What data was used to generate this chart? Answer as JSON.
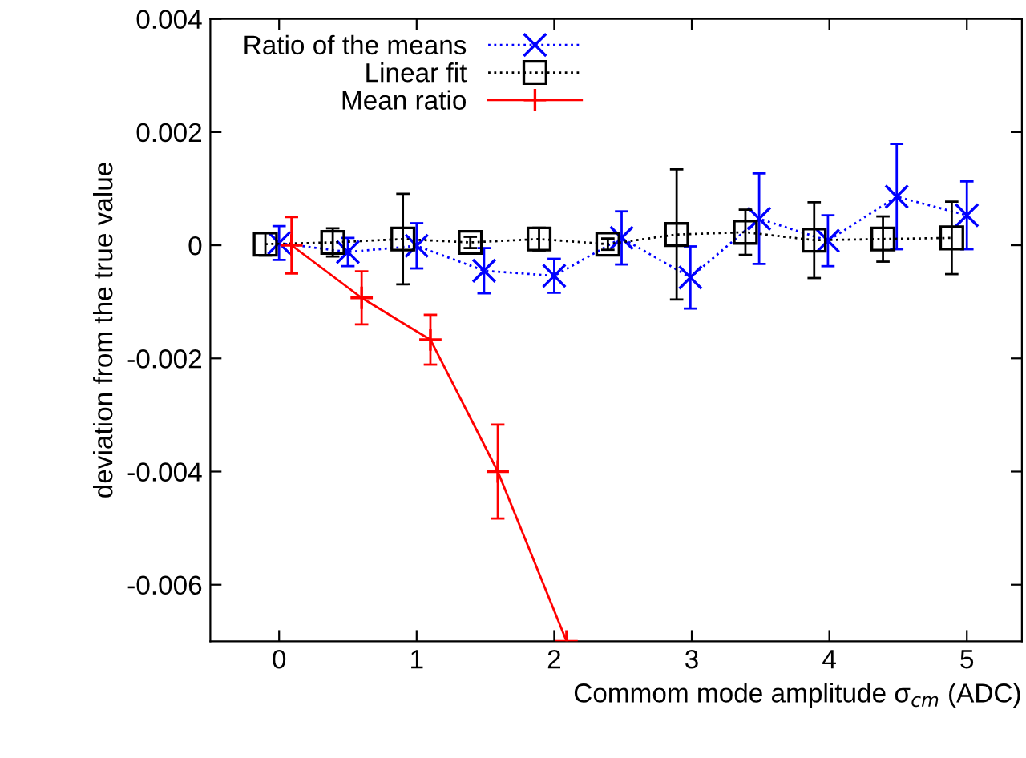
{
  "chart_data": {
    "type": "line",
    "xlabel": "Commom mode amplitude σ$_{cm}$ (ADC)",
    "ylabel": "deviation from the true value",
    "xlim": [
      -0.5,
      5.4
    ],
    "ylim": [
      -0.007,
      0.004
    ],
    "xticks": [
      0,
      1,
      2,
      3,
      4,
      5
    ],
    "yticks": [
      -0.006,
      -0.004,
      -0.002,
      0,
      0.002,
      0.004
    ],
    "grid": false,
    "legend": "top left",
    "series": [
      {
        "name": "Ratio of the means",
        "color": "#0000ff",
        "marker": "cross",
        "line_style": "dotted",
        "x": [
          0,
          0.5,
          1.0,
          1.49,
          2.0,
          2.49,
          2.99,
          3.49,
          3.99,
          4.49,
          5.0
        ],
        "values": [
          4e-05,
          -0.00012,
          -1e-05,
          -0.00045,
          -0.00054,
          0.00013,
          -0.00057,
          0.00047,
          8e-05,
          0.00086,
          0.00053
        ],
        "errors": [
          0.0003,
          0.00025,
          0.0004,
          0.0004,
          0.0003,
          0.00047,
          0.00055,
          0.0008,
          0.00045,
          0.00093,
          0.0006
        ]
      },
      {
        "name": "Linear fit",
        "color": "#000000",
        "marker": "square",
        "line_style": "dotted",
        "x": [
          -0.1,
          0.39,
          0.9,
          1.39,
          1.89,
          2.39,
          2.89,
          3.39,
          3.89,
          4.39,
          4.89
        ],
        "values": [
          2e-05,
          5e-05,
          0.00011,
          5e-05,
          0.00011,
          2e-05,
          0.00019,
          0.00023,
          9e-05,
          0.00011,
          0.00013
        ],
        "errors": [
          0.0002,
          0.00025,
          0.0008,
          0.0001,
          0.0002,
          0.0001,
          0.00115,
          0.0004,
          0.00067,
          0.0004,
          0.00064
        ]
      },
      {
        "name": "Mean ratio",
        "color": "#ff0000",
        "marker": "cross",
        "line_style": "solid",
        "x": [
          0.09,
          0.6,
          1.1,
          1.59,
          2.09
        ],
        "values": [
          0.0,
          -0.00093,
          -0.00167,
          -0.004,
          -0.007
        ],
        "errors": [
          0.0005,
          0.00047,
          0.00044,
          0.00083,
          null
        ]
      }
    ]
  }
}
